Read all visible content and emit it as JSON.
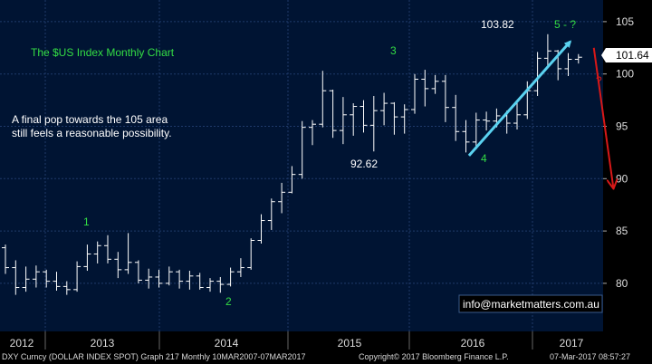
{
  "chart_data": {
    "type": "ohlc",
    "title": "The $US Index Monthly Chart",
    "ylim": [
      77,
      106
    ],
    "y_ticks": [
      80,
      85,
      90,
      95,
      100,
      105
    ],
    "x_labels": [
      "2012",
      "2013",
      "2014",
      "2015",
      "2016",
      "2017"
    ],
    "last_price": "101.64",
    "grid": true,
    "colors": {
      "background": "#001433",
      "grid": "#1f3a6a",
      "bars": "#ffffff",
      "green_text": "#33dd44",
      "red_arrow": "#d81818",
      "cyan_arrow": "#5ad2f0",
      "axis_bg": "#000000"
    },
    "annotations": {
      "note": "A final pop towards the 105 area still feels a reasonable possibility.",
      "high_label": "103.82",
      "low_label": "92.62",
      "wave_1": "1",
      "wave_2": "2",
      "wave_3": "3",
      "wave_4": "4",
      "wave_5": "5 - ?",
      "question": "?",
      "website": "info@marketmatters.com.au"
    },
    "bars": [
      {
        "o": 83.4,
        "h": 83.7,
        "l": 80.9,
        "c": 81.5
      },
      {
        "o": 81.5,
        "h": 82.2,
        "l": 78.9,
        "c": 79.6
      },
      {
        "o": 79.6,
        "h": 81.6,
        "l": 79.2,
        "c": 80.4
      },
      {
        "o": 80.4,
        "h": 81.7,
        "l": 79.6,
        "c": 81.1
      },
      {
        "o": 81.1,
        "h": 81.3,
        "l": 79.6,
        "c": 80.2
      },
      {
        "o": 80.2,
        "h": 81.1,
        "l": 79.3,
        "c": 79.7
      },
      {
        "o": 79.7,
        "h": 80.2,
        "l": 78.9,
        "c": 79.4
      },
      {
        "o": 79.4,
        "h": 82.1,
        "l": 79.2,
        "c": 81.6
      },
      {
        "o": 81.6,
        "h": 83.7,
        "l": 81.2,
        "c": 82.8
      },
      {
        "o": 82.8,
        "h": 84.0,
        "l": 81.9,
        "c": 83.6
      },
      {
        "o": 83.6,
        "h": 84.6,
        "l": 81.9,
        "c": 82.3
      },
      {
        "o": 82.3,
        "h": 83.0,
        "l": 80.5,
        "c": 81.3
      },
      {
        "o": 81.3,
        "h": 84.8,
        "l": 80.9,
        "c": 82.0
      },
      {
        "o": 82.0,
        "h": 82.2,
        "l": 80.0,
        "c": 80.3
      },
      {
        "o": 80.3,
        "h": 81.4,
        "l": 79.5,
        "c": 80.6
      },
      {
        "o": 80.6,
        "h": 81.3,
        "l": 79.6,
        "c": 80.0
      },
      {
        "o": 80.0,
        "h": 81.6,
        "l": 79.8,
        "c": 81.1
      },
      {
        "o": 81.1,
        "h": 81.3,
        "l": 79.5,
        "c": 80.2
      },
      {
        "o": 80.2,
        "h": 81.2,
        "l": 79.4,
        "c": 80.7
      },
      {
        "o": 80.7,
        "h": 81.0,
        "l": 79.4,
        "c": 79.6
      },
      {
        "o": 79.6,
        "h": 80.5,
        "l": 79.2,
        "c": 80.2
      },
      {
        "o": 80.2,
        "h": 80.6,
        "l": 79.1,
        "c": 79.9
      },
      {
        "o": 79.9,
        "h": 81.5,
        "l": 79.7,
        "c": 81.1
      },
      {
        "o": 81.1,
        "h": 82.4,
        "l": 80.6,
        "c": 81.5
      },
      {
        "o": 81.5,
        "h": 84.3,
        "l": 81.3,
        "c": 84.1
      },
      {
        "o": 84.1,
        "h": 86.6,
        "l": 83.8,
        "c": 86.0
      },
      {
        "o": 86.0,
        "h": 88.1,
        "l": 85.1,
        "c": 87.8
      },
      {
        "o": 87.8,
        "h": 89.6,
        "l": 86.7,
        "c": 88.7
      },
      {
        "o": 88.7,
        "h": 91.2,
        "l": 88.6,
        "c": 90.4
      },
      {
        "o": 90.4,
        "h": 95.5,
        "l": 90.0,
        "c": 94.9
      },
      {
        "o": 94.9,
        "h": 95.6,
        "l": 93.2,
        "c": 95.2
      },
      {
        "o": 95.2,
        "h": 100.3,
        "l": 94.9,
        "c": 98.4
      },
      {
        "o": 98.4,
        "h": 98.5,
        "l": 93.9,
        "c": 94.6
      },
      {
        "o": 94.6,
        "h": 97.8,
        "l": 93.3,
        "c": 96.1
      },
      {
        "o": 96.1,
        "h": 97.2,
        "l": 94.1,
        "c": 96.9
      },
      {
        "o": 96.9,
        "h": 97.5,
        "l": 94.4,
        "c": 95.1
      },
      {
        "o": 95.1,
        "h": 97.9,
        "l": 92.6,
        "c": 96.5
      },
      {
        "o": 96.5,
        "h": 98.2,
        "l": 95.1,
        "c": 97.2
      },
      {
        "o": 97.2,
        "h": 97.3,
        "l": 94.2,
        "c": 95.9
      },
      {
        "o": 95.9,
        "h": 97.1,
        "l": 94.3,
        "c": 96.6
      },
      {
        "o": 96.6,
        "h": 100.0,
        "l": 96.2,
        "c": 99.5
      },
      {
        "o": 99.5,
        "h": 100.4,
        "l": 96.9,
        "c": 98.6
      },
      {
        "o": 98.6,
        "h": 99.9,
        "l": 98.1,
        "c": 99.3
      },
      {
        "o": 99.3,
        "h": 99.9,
        "l": 95.4,
        "c": 96.8
      },
      {
        "o": 96.8,
        "h": 98.0,
        "l": 93.6,
        "c": 94.5
      },
      {
        "o": 94.5,
        "h": 95.6,
        "l": 92.5,
        "c": 93.5
      },
      {
        "o": 93.5,
        "h": 96.3,
        "l": 92.8,
        "c": 95.6
      },
      {
        "o": 95.6,
        "h": 96.4,
        "l": 94.6,
        "c": 95.5
      },
      {
        "o": 95.5,
        "h": 96.7,
        "l": 94.9,
        "c": 96.0
      },
      {
        "o": 96.0,
        "h": 96.5,
        "l": 94.3,
        "c": 95.3
      },
      {
        "o": 95.3,
        "h": 97.5,
        "l": 94.7,
        "c": 96.1
      },
      {
        "o": 96.1,
        "h": 99.3,
        "l": 95.7,
        "c": 98.4
      },
      {
        "o": 98.4,
        "h": 102.1,
        "l": 97.9,
        "c": 101.5
      },
      {
        "o": 101.5,
        "h": 103.8,
        "l": 100.6,
        "c": 102.2
      },
      {
        "o": 102.2,
        "h": 102.3,
        "l": 99.4,
        "c": 100.5
      },
      {
        "o": 100.5,
        "h": 102.0,
        "l": 99.8,
        "c": 101.4
      },
      {
        "o": 101.4,
        "h": 101.9,
        "l": 101.0,
        "c": 101.6
      }
    ],
    "arrows": [
      {
        "name": "cyan-trend-arrow",
        "from": [
          45.3,
          92.2
        ],
        "to": [
          55.2,
          103.1
        ],
        "color": "cyan"
      },
      {
        "name": "red-forecast-arrow",
        "from": [
          57.5,
          102.5
        ],
        "to": [
          59.4,
          89.2
        ],
        "color": "red"
      }
    ]
  },
  "footer": {
    "left": "DXY Curncy (DOLLAR INDEX SPOT) Graph 217  Monthly 10MAR2007-07MAR2017",
    "center": "Copyright© 2017 Bloomberg Finance L.P.",
    "right": "07-Mar-2017 08:57:27"
  }
}
